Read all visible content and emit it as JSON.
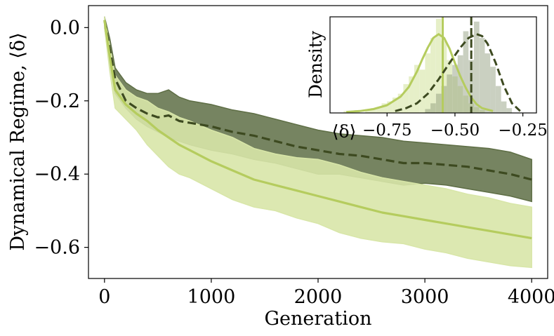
{
  "chart_data": [
    {
      "type": "line",
      "title": "",
      "xlabel": "Generation",
      "ylabel": "Dynamical Regime, ⟨δ⟩",
      "xlim": [
        -150,
        4150
      ],
      "ylim": [
        -0.685,
        0.06
      ],
      "xticks": [
        0,
        1000,
        2000,
        3000,
        4000
      ],
      "xtick_labels": [
        "0",
        "1000",
        "2000",
        "3000",
        "4000"
      ],
      "yticks": [
        0.0,
        -0.2,
        -0.4,
        -0.6
      ],
      "ytick_labels": [
        "0.0",
        "−0.2",
        "−0.4",
        "−0.6"
      ],
      "x": [
        0,
        50,
        100,
        200,
        300,
        400,
        500,
        600,
        700,
        800,
        1000,
        1200,
        1400,
        1600,
        1800,
        2000,
        2200,
        2400,
        2600,
        2800,
        3000,
        3200,
        3400,
        3600,
        3800,
        4000
      ],
      "series": [
        {
          "name": "dark-dashed",
          "color": "#3d4a20",
          "fill": "#5e6e45",
          "style": "dashed",
          "mean": [
            0.02,
            -0.06,
            -0.14,
            -0.2,
            -0.22,
            -0.235,
            -0.245,
            -0.24,
            -0.255,
            -0.26,
            -0.27,
            -0.285,
            -0.295,
            -0.31,
            -0.325,
            -0.335,
            -0.345,
            -0.35,
            -0.36,
            -0.37,
            -0.37,
            -0.375,
            -0.38,
            -0.39,
            -0.4,
            -0.415
          ],
          "upper": [
            0.03,
            -0.03,
            -0.11,
            -0.15,
            -0.17,
            -0.18,
            -0.18,
            -0.17,
            -0.19,
            -0.2,
            -0.21,
            -0.225,
            -0.235,
            -0.25,
            -0.265,
            -0.28,
            -0.29,
            -0.295,
            -0.3,
            -0.31,
            -0.315,
            -0.32,
            -0.325,
            -0.33,
            -0.34,
            -0.36
          ],
          "lower": [
            0.0,
            -0.1,
            -0.18,
            -0.22,
            -0.25,
            -0.27,
            -0.285,
            -0.3,
            -0.31,
            -0.32,
            -0.335,
            -0.345,
            -0.36,
            -0.37,
            -0.385,
            -0.4,
            -0.4,
            -0.41,
            -0.42,
            -0.43,
            -0.425,
            -0.43,
            -0.44,
            -0.45,
            -0.46,
            -0.475
          ]
        },
        {
          "name": "light-solid",
          "color": "#b5cc5e",
          "fill": "#d8e6a8",
          "style": "solid",
          "mean": [
            0.02,
            -0.08,
            -0.17,
            -0.21,
            -0.235,
            -0.255,
            -0.28,
            -0.3,
            -0.32,
            -0.335,
            -0.365,
            -0.39,
            -0.415,
            -0.43,
            -0.445,
            -0.46,
            -0.475,
            -0.49,
            -0.505,
            -0.515,
            -0.525,
            -0.535,
            -0.545,
            -0.555,
            -0.565,
            -0.575
          ],
          "upper": [
            0.03,
            -0.05,
            -0.13,
            -0.17,
            -0.19,
            -0.2,
            -0.22,
            -0.23,
            -0.245,
            -0.255,
            -0.28,
            -0.3,
            -0.33,
            -0.345,
            -0.355,
            -0.36,
            -0.375,
            -0.395,
            -0.41,
            -0.42,
            -0.43,
            -0.44,
            -0.455,
            -0.465,
            -0.48,
            -0.49
          ],
          "lower": [
            0.0,
            -0.12,
            -0.22,
            -0.25,
            -0.28,
            -0.32,
            -0.35,
            -0.38,
            -0.4,
            -0.41,
            -0.44,
            -0.47,
            -0.49,
            -0.5,
            -0.52,
            -0.535,
            -0.56,
            -0.575,
            -0.585,
            -0.59,
            -0.605,
            -0.615,
            -0.63,
            -0.64,
            -0.65,
            -0.655
          ]
        }
      ]
    },
    {
      "type": "histogram",
      "title": "inset",
      "xlabel": "⟨δ⟩",
      "ylabel": "Density",
      "xlim": [
        -0.96,
        -0.2
      ],
      "ylim": [
        0,
        1
      ],
      "xticks": [
        -0.75,
        -0.5,
        -0.25
      ],
      "xtick_labels": [
        "−0.75",
        "−0.50",
        "−0.25"
      ],
      "bin_width": 0.02,
      "series": [
        {
          "name": "light",
          "color": "#b5cc5e",
          "hist_x": [
            -0.9,
            -0.88,
            -0.86,
            -0.84,
            -0.82,
            -0.8,
            -0.78,
            -0.76,
            -0.74,
            -0.72,
            -0.7,
            -0.68,
            -0.66,
            -0.64,
            -0.62,
            -0.6,
            -0.58,
            -0.56,
            -0.54,
            -0.52,
            -0.5,
            -0.48,
            -0.46,
            -0.44,
            -0.42,
            -0.4
          ],
          "hist_y": [
            0.02,
            0.02,
            0.03,
            0.0,
            0.04,
            0.05,
            0.06,
            0.1,
            0.12,
            0.16,
            0.2,
            0.3,
            0.38,
            0.5,
            0.45,
            0.62,
            0.78,
            0.98,
            0.75,
            0.55,
            0.38,
            0.28,
            0.18,
            0.1,
            0.06,
            0.03
          ],
          "kde_x": [
            -0.9,
            -0.85,
            -0.8,
            -0.75,
            -0.7,
            -0.67,
            -0.64,
            -0.62,
            -0.6,
            -0.58,
            -0.56,
            -0.54,
            -0.52,
            -0.5,
            -0.48,
            -0.46,
            -0.44,
            -0.42,
            -0.4,
            -0.36
          ],
          "kde_y": [
            0.01,
            0.02,
            0.04,
            0.08,
            0.17,
            0.27,
            0.43,
            0.56,
            0.68,
            0.78,
            0.82,
            0.78,
            0.67,
            0.52,
            0.38,
            0.26,
            0.16,
            0.09,
            0.05,
            0.02
          ],
          "median": -0.545
        },
        {
          "name": "dark",
          "color": "#3d4a20",
          "hist_x": [
            -0.6,
            -0.58,
            -0.56,
            -0.54,
            -0.52,
            -0.5,
            -0.48,
            -0.46,
            -0.44,
            -0.42,
            -0.4,
            -0.38,
            -0.36,
            -0.34,
            -0.32,
            -0.3
          ],
          "hist_y": [
            0.04,
            0.1,
            0.2,
            0.28,
            0.4,
            0.5,
            0.6,
            0.85,
            0.55,
            0.95,
            0.78,
            0.62,
            0.48,
            0.28,
            0.12,
            0.05
          ],
          "kde_x": [
            -0.72,
            -0.68,
            -0.64,
            -0.6,
            -0.56,
            -0.52,
            -0.48,
            -0.45,
            -0.42,
            -0.4,
            -0.38,
            -0.35,
            -0.32,
            -0.29,
            -0.26
          ],
          "kde_y": [
            0.02,
            0.05,
            0.1,
            0.2,
            0.35,
            0.52,
            0.68,
            0.78,
            0.82,
            0.8,
            0.72,
            0.52,
            0.28,
            0.1,
            0.02
          ],
          "median": -0.44
        }
      ]
    }
  ]
}
